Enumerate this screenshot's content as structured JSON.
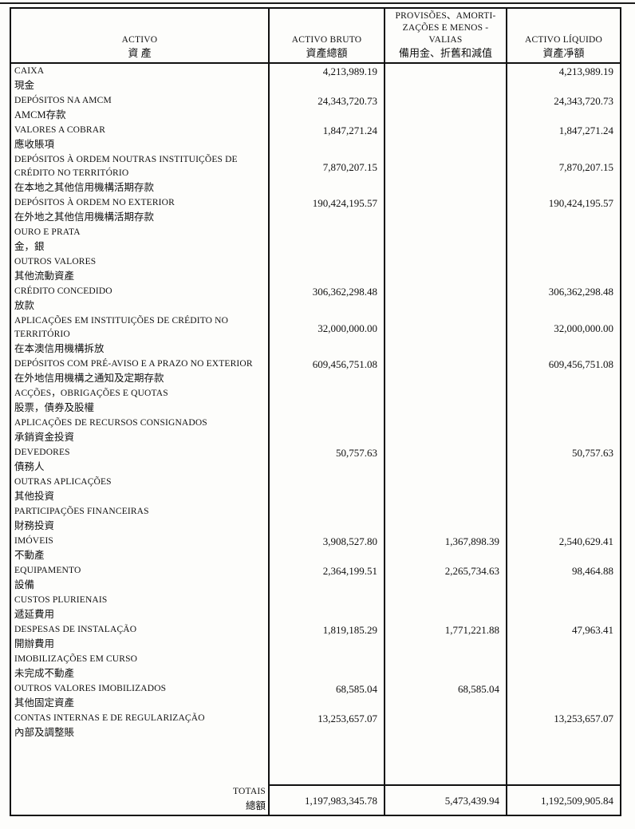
{
  "colors": {
    "ink": "#101010",
    "paper": "#fdfdfb"
  },
  "table": {
    "header": {
      "activo": {
        "pt": "ACTIVO",
        "cn": "資 產"
      },
      "activo_bruto": {
        "pt": "ACTIVO BRUTO",
        "cn": "資產總額"
      },
      "provisoes": {
        "pt1": "PROVISÕES、AMORTI-",
        "pt2": "ZAÇÕES E MENOS -",
        "pt3": "VALIAS",
        "cn": "備用金、折舊和減值"
      },
      "activo_liquido": {
        "pt": "ACTIVO LÍQUIDO",
        "cn": "資產凈額"
      }
    },
    "rows": [
      {
        "pt": "CAIXA",
        "cn": "現金",
        "bruto": "4,213,989.19",
        "provisoes": "",
        "liquido": "4,213,989.19"
      },
      {
        "pt": "DEPÓSITOS NA AMCM",
        "cn": "AMCM存款",
        "bruto": "24,343,720.73",
        "provisoes": "",
        "liquido": "24,343,720.73"
      },
      {
        "pt": "VALORES A COBRAR",
        "cn": "應收賬項",
        "bruto": "1,847,271.24",
        "provisoes": "",
        "liquido": "1,847,271.24"
      },
      {
        "pt": "DEPÓSITOS À ORDEM NOUTRAS INSTITUIÇÕES DE CRÉDITO NO TERRITÓRIO",
        "cn": "在本地之其他信用機構活期存款",
        "bruto": "7,870,207.15",
        "provisoes": "",
        "liquido": "7,870,207.15"
      },
      {
        "pt": "DEPÓSITOS À ORDEM NO EXTERIOR",
        "cn": "在外地之其他信用機構活期存款",
        "bruto": "190,424,195.57",
        "provisoes": "",
        "liquido": "190,424,195.57"
      },
      {
        "pt": "OURO E PRATA",
        "cn": "金，銀",
        "bruto": "",
        "provisoes": "",
        "liquido": ""
      },
      {
        "pt": "OUTROS VALORES",
        "cn": "其他流動資產",
        "bruto": "",
        "provisoes": "",
        "liquido": ""
      },
      {
        "pt": "CRÉDITO CONCEDIDO",
        "cn": "放款",
        "bruto": "306,362,298.48",
        "provisoes": "",
        "liquido": "306,362,298.48"
      },
      {
        "pt": "APLICAÇÕES EM INSTITUIÇÕES DE CRÉDITO NO TERRITÓRIO",
        "cn": "在本澳信用機構拆放",
        "bruto": "32,000,000.00",
        "provisoes": "",
        "liquido": "32,000,000.00"
      },
      {
        "pt": "DEPÓSITOS COM PRÉ-AVISO E A PRAZO NO EXTERIOR",
        "cn": "在外地信用機構之通知及定期存款",
        "bruto": "609,456,751.08",
        "provisoes": "",
        "liquido": "609,456,751.08"
      },
      {
        "pt": "ACÇÕES，OBRIGAÇÕES E QUOTAS",
        "cn": "股票，債券及股權",
        "bruto": "",
        "provisoes": "",
        "liquido": ""
      },
      {
        "pt": "APLICAÇÕES DE RECURSOS CONSIGNADOS",
        "cn": "承銷資金投資",
        "bruto": "",
        "provisoes": "",
        "liquido": ""
      },
      {
        "pt": "DEVEDORES",
        "cn": "債務人",
        "bruto": "50,757.63",
        "provisoes": "",
        "liquido": "50,757.63"
      },
      {
        "pt": "OUTRAS APLICAÇÕES",
        "cn": "其他投資",
        "bruto": "",
        "provisoes": "",
        "liquido": ""
      },
      {
        "pt": "PARTICIPAÇÕES FINANCEIRAS",
        "cn": "財務投資",
        "bruto": "",
        "provisoes": "",
        "liquido": ""
      },
      {
        "pt": "IMÓVEIS",
        "cn": "不動產",
        "bruto": "3,908,527.80",
        "provisoes": "1,367,898.39",
        "liquido": "2,540,629.41"
      },
      {
        "pt": "EQUIPAMENTO",
        "cn": "設備",
        "bruto": "2,364,199.51",
        "provisoes": "2,265,734.63",
        "liquido": "98,464.88"
      },
      {
        "pt": "CUSTOS PLURIENAIS",
        "cn": "遞延費用",
        "bruto": "",
        "provisoes": "",
        "liquido": ""
      },
      {
        "pt": "DESPESAS DE INSTALAÇÃO",
        "cn": "開辦費用",
        "bruto": "1,819,185.29",
        "provisoes": "1,771,221.88",
        "liquido": "47,963.41"
      },
      {
        "pt": "IMOBILIZAÇÕES EM CURSO",
        "cn": "未完成不動產",
        "bruto": "",
        "provisoes": "",
        "liquido": ""
      },
      {
        "pt": "OUTROS VALORES IMOBILIZADOS",
        "cn": "其他固定資產",
        "bruto": "68,585.04",
        "provisoes": "68,585.04",
        "liquido": ""
      },
      {
        "pt": "CONTAS INTERNAS E DE REGULARIZAÇÃO",
        "cn": "內部及調整賬",
        "bruto": "13,253,657.07",
        "provisoes": "",
        "liquido": "13,253,657.07"
      }
    ],
    "totals": {
      "pt": "TOTAIS",
      "cn": "總額",
      "bruto": "1,197,983,345.78",
      "provisoes": "5,473,439.94",
      "liquido": "1,192,509,905.84"
    }
  }
}
